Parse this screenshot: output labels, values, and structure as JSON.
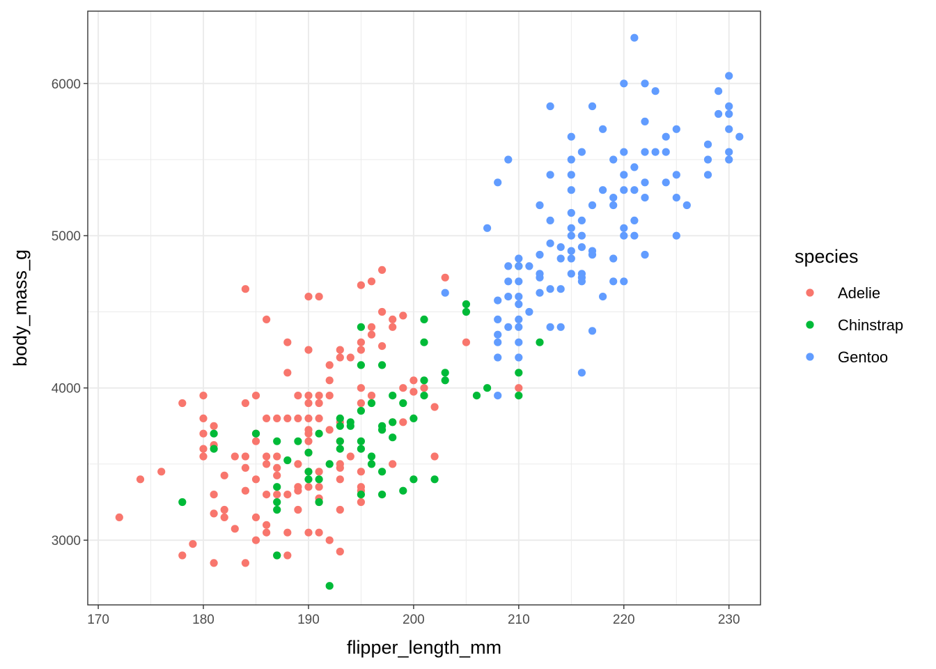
{
  "chart_data": {
    "type": "scatter",
    "title": "",
    "xlabel": "flipper_length_mm",
    "ylabel": "body_mass_g",
    "xlim": [
      169,
      233
    ],
    "ylim": [
      2575,
      6475
    ],
    "x_ticks": [
      170,
      180,
      190,
      200,
      210,
      220,
      230
    ],
    "x_tick_labels": [
      "170",
      "180",
      "190",
      "200",
      "210",
      "220",
      "230"
    ],
    "y_ticks": [
      3000,
      4000,
      5000,
      6000
    ],
    "y_tick_labels": [
      "3000",
      "4000",
      "5000",
      "6000"
    ],
    "grid": true,
    "legend": {
      "title": "species",
      "placement": "right"
    },
    "series": [
      {
        "name": "Adelie",
        "color": "#F8766D",
        "points": [
          [
            172,
            3150
          ],
          [
            174,
            3400
          ],
          [
            176,
            3450
          ],
          [
            178,
            3900
          ],
          [
            178,
            2900
          ],
          [
            179,
            2975
          ],
          [
            180,
            3950
          ],
          [
            180,
            3800
          ],
          [
            180,
            3700
          ],
          [
            180,
            3600
          ],
          [
            180,
            3550
          ],
          [
            181,
            3750
          ],
          [
            181,
            3625
          ],
          [
            181,
            3300
          ],
          [
            181,
            3175
          ],
          [
            181,
            2850
          ],
          [
            182,
            3425
          ],
          [
            182,
            3200
          ],
          [
            182,
            3150
          ],
          [
            183,
            3550
          ],
          [
            183,
            3075
          ],
          [
            184,
            4650
          ],
          [
            184,
            3900
          ],
          [
            184,
            3550
          ],
          [
            184,
            3475
          ],
          [
            184,
            3325
          ],
          [
            184,
            2850
          ],
          [
            185,
            3950
          ],
          [
            185,
            3700
          ],
          [
            185,
            3650
          ],
          [
            185,
            3400
          ],
          [
            185,
            3150
          ],
          [
            185,
            3000
          ],
          [
            186,
            4450
          ],
          [
            186,
            3800
          ],
          [
            186,
            3550
          ],
          [
            186,
            3500
          ],
          [
            186,
            3300
          ],
          [
            186,
            3100
          ],
          [
            186,
            3050
          ],
          [
            187,
            3800
          ],
          [
            187,
            3550
          ],
          [
            187,
            3475
          ],
          [
            187,
            3425
          ],
          [
            187,
            3300
          ],
          [
            187,
            2900
          ],
          [
            188,
            4300
          ],
          [
            188,
            4100
          ],
          [
            188,
            3800
          ],
          [
            188,
            3300
          ],
          [
            188,
            3050
          ],
          [
            188,
            2900
          ],
          [
            189,
            3950
          ],
          [
            189,
            3800
          ],
          [
            189,
            3500
          ],
          [
            189,
            3350
          ],
          [
            189,
            3325
          ],
          [
            189,
            3200
          ],
          [
            190,
            4600
          ],
          [
            190,
            4250
          ],
          [
            190,
            3950
          ],
          [
            190,
            3900
          ],
          [
            190,
            3800
          ],
          [
            190,
            3725
          ],
          [
            190,
            3700
          ],
          [
            190,
            3650
          ],
          [
            190,
            3575
          ],
          [
            190,
            3450
          ],
          [
            190,
            3350
          ],
          [
            190,
            3050
          ],
          [
            191,
            4600
          ],
          [
            191,
            3950
          ],
          [
            191,
            3900
          ],
          [
            191,
            3800
          ],
          [
            191,
            3450
          ],
          [
            191,
            3350
          ],
          [
            191,
            3275
          ],
          [
            191,
            3250
          ],
          [
            191,
            3050
          ],
          [
            192,
            4150
          ],
          [
            192,
            4050
          ],
          [
            192,
            3950
          ],
          [
            192,
            3725
          ],
          [
            192,
            3000
          ],
          [
            193,
            4250
          ],
          [
            193,
            4200
          ],
          [
            193,
            3775
          ],
          [
            193,
            3650
          ],
          [
            193,
            3500
          ],
          [
            193,
            3475
          ],
          [
            193,
            3400
          ],
          [
            193,
            3200
          ],
          [
            193,
            2925
          ],
          [
            194,
            4200
          ],
          [
            194,
            3550
          ],
          [
            195,
            4675
          ],
          [
            195,
            4300
          ],
          [
            195,
            4250
          ],
          [
            195,
            4000
          ],
          [
            195,
            3900
          ],
          [
            195,
            3450
          ],
          [
            195,
            3350
          ],
          [
            195,
            3325
          ],
          [
            195,
            3250
          ],
          [
            196,
            4700
          ],
          [
            196,
            4350
          ],
          [
            196,
            4400
          ],
          [
            196,
            3950
          ],
          [
            197,
            4775
          ],
          [
            197,
            4500
          ],
          [
            197,
            4275
          ],
          [
            198,
            4450
          ],
          [
            198,
            4400
          ],
          [
            198,
            3775
          ],
          [
            198,
            3500
          ],
          [
            199,
            4475
          ],
          [
            199,
            4000
          ],
          [
            199,
            3775
          ],
          [
            200,
            4050
          ],
          [
            200,
            3975
          ],
          [
            201,
            4000
          ],
          [
            202,
            3875
          ],
          [
            202,
            3550
          ],
          [
            203,
            4725
          ],
          [
            205,
            4300
          ],
          [
            210,
            4000
          ]
        ]
      },
      {
        "name": "Chinstrap",
        "color": "#00BA38",
        "points": [
          [
            178,
            3250
          ],
          [
            181,
            3700
          ],
          [
            181,
            3600
          ],
          [
            185,
            3700
          ],
          [
            187,
            3650
          ],
          [
            187,
            3350
          ],
          [
            187,
            3250
          ],
          [
            187,
            3200
          ],
          [
            187,
            2900
          ],
          [
            188,
            3525
          ],
          [
            189,
            3650
          ],
          [
            190,
            3575
          ],
          [
            190,
            3450
          ],
          [
            190,
            3400
          ],
          [
            191,
            3700
          ],
          [
            191,
            3400
          ],
          [
            191,
            3250
          ],
          [
            192,
            3500
          ],
          [
            192,
            2700
          ],
          [
            193,
            3800
          ],
          [
            193,
            3750
          ],
          [
            193,
            3650
          ],
          [
            193,
            3600
          ],
          [
            194,
            3775
          ],
          [
            194,
            3750
          ],
          [
            195,
            4400
          ],
          [
            195,
            4150
          ],
          [
            195,
            3850
          ],
          [
            195,
            3650
          ],
          [
            195,
            3600
          ],
          [
            195,
            3300
          ],
          [
            196,
            3900
          ],
          [
            196,
            3550
          ],
          [
            196,
            3500
          ],
          [
            197,
            4150
          ],
          [
            197,
            3750
          ],
          [
            197,
            3725
          ],
          [
            197,
            3450
          ],
          [
            197,
            3300
          ],
          [
            198,
            3950
          ],
          [
            198,
            3775
          ],
          [
            198,
            3675
          ],
          [
            199,
            3900
          ],
          [
            199,
            3325
          ],
          [
            200,
            3800
          ],
          [
            200,
            3400
          ],
          [
            201,
            4450
          ],
          [
            201,
            4300
          ],
          [
            201,
            4050
          ],
          [
            201,
            3950
          ],
          [
            202,
            3400
          ],
          [
            203,
            4100
          ],
          [
            203,
            4050
          ],
          [
            205,
            4550
          ],
          [
            205,
            4500
          ],
          [
            206,
            3950
          ],
          [
            207,
            4000
          ],
          [
            210,
            4800
          ],
          [
            210,
            4100
          ],
          [
            210,
            3950
          ],
          [
            212,
            4300
          ]
        ]
      },
      {
        "name": "Gentoo",
        "color": "#619CFF",
        "points": [
          [
            203,
            4625
          ],
          [
            207,
            5050
          ],
          [
            208,
            5350
          ],
          [
            208,
            4575
          ],
          [
            208,
            4450
          ],
          [
            208,
            4350
          ],
          [
            208,
            4300
          ],
          [
            208,
            4200
          ],
          [
            208,
            3950
          ],
          [
            209,
            5500
          ],
          [
            209,
            4800
          ],
          [
            209,
            4700
          ],
          [
            209,
            4600
          ],
          [
            209,
            4400
          ],
          [
            210,
            4850
          ],
          [
            210,
            4800
          ],
          [
            210,
            4700
          ],
          [
            210,
            4600
          ],
          [
            210,
            4550
          ],
          [
            210,
            4450
          ],
          [
            210,
            4400
          ],
          [
            210,
            4300
          ],
          [
            210,
            4200
          ],
          [
            211,
            4800
          ],
          [
            211,
            4500
          ],
          [
            212,
            5200
          ],
          [
            212,
            4875
          ],
          [
            212,
            4750
          ],
          [
            212,
            4725
          ],
          [
            212,
            4625
          ],
          [
            213,
            5850
          ],
          [
            213,
            5400
          ],
          [
            213,
            5100
          ],
          [
            213,
            4950
          ],
          [
            213,
            4650
          ],
          [
            213,
            4400
          ],
          [
            214,
            4925
          ],
          [
            214,
            4850
          ],
          [
            214,
            4650
          ],
          [
            214,
            4400
          ],
          [
            215,
            5650
          ],
          [
            215,
            5500
          ],
          [
            215,
            5400
          ],
          [
            215,
            5300
          ],
          [
            215,
            5150
          ],
          [
            215,
            5050
          ],
          [
            215,
            5000
          ],
          [
            215,
            4900
          ],
          [
            215,
            4850
          ],
          [
            215,
            4750
          ],
          [
            216,
            5550
          ],
          [
            216,
            5100
          ],
          [
            216,
            5000
          ],
          [
            216,
            4925
          ],
          [
            216,
            4750
          ],
          [
            216,
            4725
          ],
          [
            216,
            4700
          ],
          [
            216,
            4100
          ],
          [
            217,
            5850
          ],
          [
            217,
            5200
          ],
          [
            217,
            4900
          ],
          [
            217,
            4875
          ],
          [
            217,
            4375
          ],
          [
            218,
            5700
          ],
          [
            218,
            5300
          ],
          [
            218,
            4600
          ],
          [
            219,
            5500
          ],
          [
            219,
            5250
          ],
          [
            219,
            5200
          ],
          [
            219,
            4850
          ],
          [
            219,
            4700
          ],
          [
            220,
            6000
          ],
          [
            220,
            5550
          ],
          [
            220,
            5400
          ],
          [
            220,
            5300
          ],
          [
            220,
            5050
          ],
          [
            220,
            5000
          ],
          [
            220,
            4700
          ],
          [
            221,
            6300
          ],
          [
            221,
            5450
          ],
          [
            221,
            5300
          ],
          [
            221,
            5100
          ],
          [
            221,
            5000
          ],
          [
            222,
            6000
          ],
          [
            222,
            5750
          ],
          [
            222,
            5550
          ],
          [
            222,
            5350
          ],
          [
            222,
            5250
          ],
          [
            222,
            4875
          ],
          [
            223,
            5950
          ],
          [
            223,
            5550
          ],
          [
            224,
            5650
          ],
          [
            224,
            5550
          ],
          [
            224,
            5350
          ],
          [
            225,
            5700
          ],
          [
            225,
            5400
          ],
          [
            225,
            5250
          ],
          [
            225,
            5000
          ],
          [
            226,
            5200
          ],
          [
            228,
            5600
          ],
          [
            228,
            5500
          ],
          [
            228,
            5400
          ],
          [
            229,
            5950
          ],
          [
            229,
            5800
          ],
          [
            230,
            6050
          ],
          [
            230,
            5850
          ],
          [
            230,
            5800
          ],
          [
            230,
            5700
          ],
          [
            230,
            5550
          ],
          [
            230,
            5500
          ],
          [
            231,
            5650
          ]
        ]
      }
    ]
  }
}
